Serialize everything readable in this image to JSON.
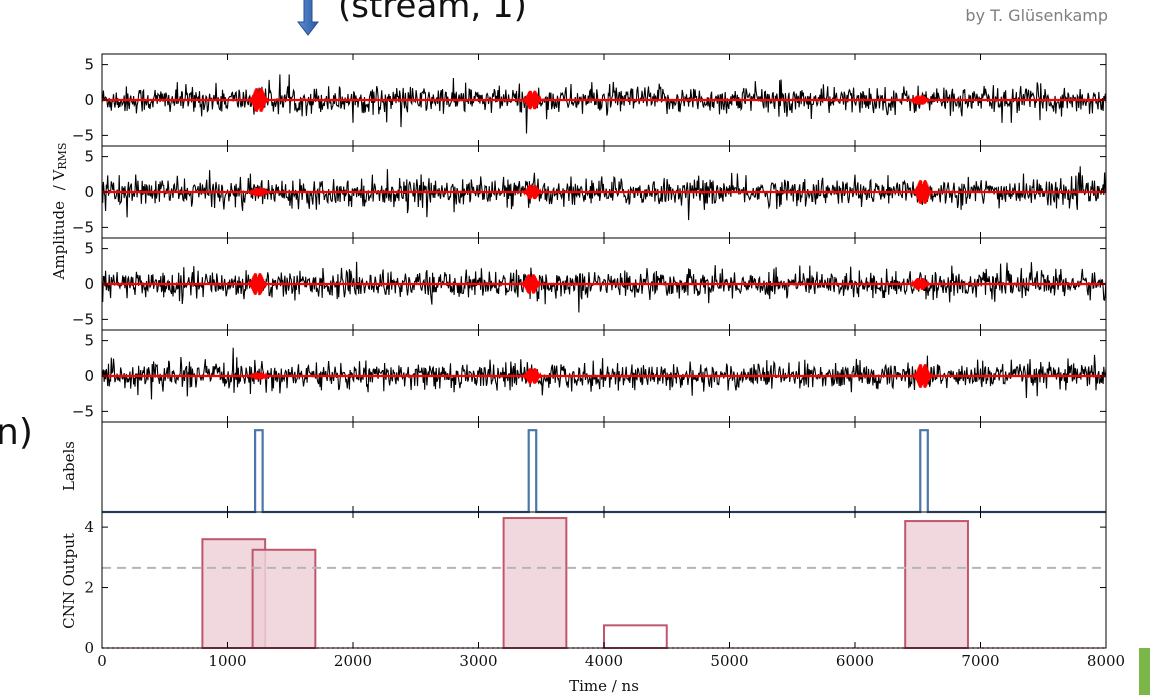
{
  "header": {
    "stream_label": "(stream, 1)",
    "credit": "by T. Glüsenkamp",
    "left_fragment": "n)"
  },
  "colors": {
    "signal": "#ff0000",
    "waveform": "#000000",
    "label_line": "#4a76a8",
    "cnn_edge": "#c0566c",
    "cnn_fill": "#efd1d8",
    "threshold": "#b5b5b5",
    "accent_bar": "#7ab648"
  },
  "chart_data": [
    {
      "type": "line",
      "panel": "waveform-1",
      "ylabel_main": "Amplitude",
      "ylabel_unit": "/ V",
      "ylabel_sub": "RMS",
      "ylim": [
        -6.5,
        6.5
      ],
      "yticks": [
        "5",
        "0",
        "−5"
      ],
      "ytick_values": [
        5,
        0,
        -5
      ],
      "series": [
        {
          "role": "noise",
          "sigma": 1.0
        },
        {
          "role": "signal",
          "pulses": [
            {
              "t": 1250,
              "amp": 5.5
            },
            {
              "t": 3430,
              "amp": 4.3
            },
            {
              "t": 6520,
              "amp": 2.2
            }
          ]
        }
      ]
    },
    {
      "type": "line",
      "panel": "waveform-2",
      "ylim": [
        -6.5,
        6.5
      ],
      "yticks": [
        "5",
        "0",
        "−5"
      ],
      "ytick_values": [
        5,
        0,
        -5
      ],
      "series": [
        {
          "role": "noise",
          "sigma": 1.0
        },
        {
          "role": "signal",
          "pulses": [
            {
              "t": 1250,
              "amp": 2.0
            },
            {
              "t": 3430,
              "amp": 3.3
            },
            {
              "t": 6540,
              "amp": 5.5
            }
          ]
        }
      ]
    },
    {
      "type": "line",
      "panel": "waveform-3",
      "ylim": [
        -6.5,
        6.5
      ],
      "yticks": [
        "5",
        "0",
        "−5"
      ],
      "ytick_values": [
        5,
        0,
        -5
      ],
      "series": [
        {
          "role": "noise",
          "sigma": 1.0
        },
        {
          "role": "signal",
          "pulses": [
            {
              "t": 1240,
              "amp": 5.0
            },
            {
              "t": 3420,
              "amp": 4.5
            },
            {
              "t": 6520,
              "amp": 2.8
            }
          ]
        }
      ]
    },
    {
      "type": "line",
      "panel": "waveform-4",
      "ylim": [
        -6.5,
        6.5
      ],
      "yticks": [
        "5",
        "0",
        "−5"
      ],
      "ytick_values": [
        5,
        0,
        -5
      ],
      "series": [
        {
          "role": "noise",
          "sigma": 1.0
        },
        {
          "role": "signal",
          "pulses": [
            {
              "t": 1250,
              "amp": 1.6
            },
            {
              "t": 3430,
              "amp": 3.6
            },
            {
              "t": 6540,
              "amp": 5.5
            }
          ]
        }
      ]
    },
    {
      "type": "line",
      "panel": "labels",
      "ylabel": "Labels",
      "ylim": [
        0,
        1.1
      ],
      "pulses": [
        {
          "start": 1220,
          "end": 1280
        },
        {
          "start": 3400,
          "end": 3460
        },
        {
          "start": 6520,
          "end": 6580
        }
      ]
    },
    {
      "type": "bar",
      "panel": "cnn-output",
      "ylabel": "CNN Output",
      "xlabel": "Time / ns",
      "xlim": [
        0,
        8000
      ],
      "ylim": [
        0,
        4.5
      ],
      "xticks": [
        "0",
        "1000",
        "2000",
        "3000",
        "4000",
        "5000",
        "6000",
        "7000",
        "8000"
      ],
      "xtick_values": [
        0,
        1000,
        2000,
        3000,
        4000,
        5000,
        6000,
        7000,
        8000
      ],
      "yticks": [
        "0",
        "2",
        "4"
      ],
      "ytick_values": [
        0,
        2,
        4
      ],
      "threshold": 2.65,
      "boxes": [
        {
          "start": 800,
          "end": 1300,
          "value": 3.6,
          "filled": true
        },
        {
          "start": 1200,
          "end": 1700,
          "value": 3.25,
          "filled": true
        },
        {
          "start": 3200,
          "end": 3700,
          "value": 4.3,
          "filled": true
        },
        {
          "start": 4000,
          "end": 4500,
          "value": 0.75,
          "filled": false
        },
        {
          "start": 6400,
          "end": 6900,
          "value": 4.2,
          "filled": true
        }
      ]
    }
  ]
}
